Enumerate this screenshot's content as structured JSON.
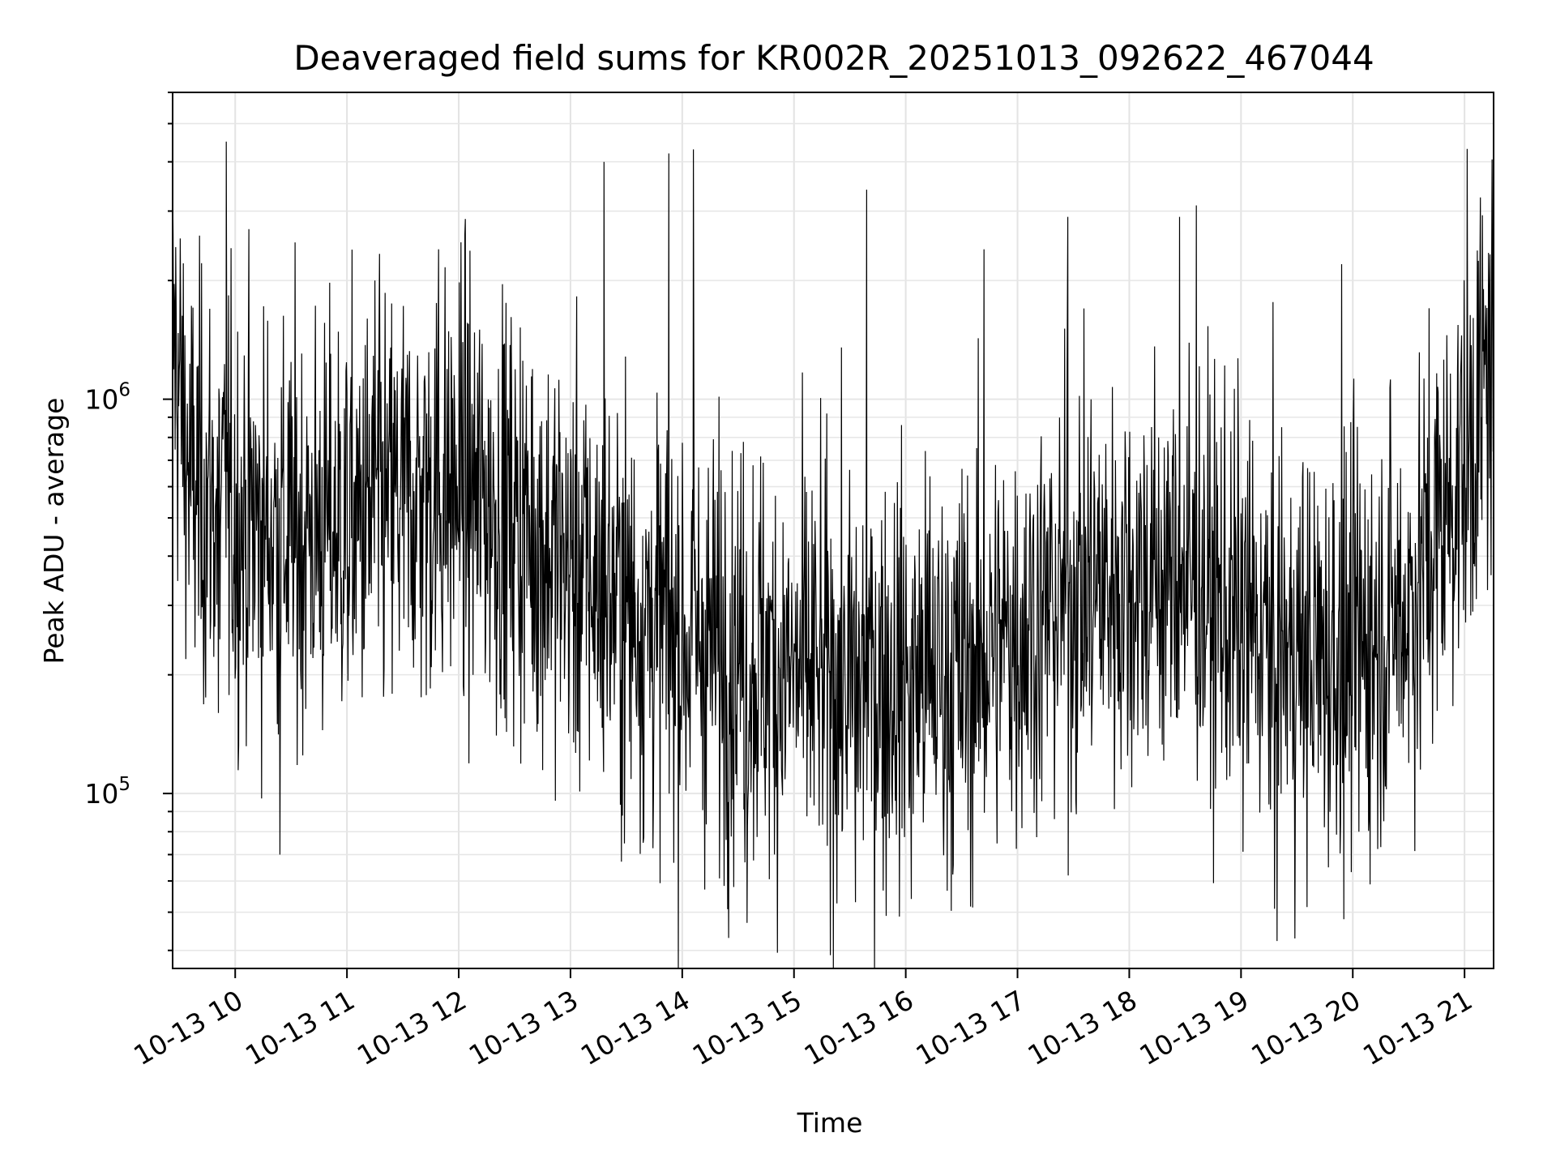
{
  "chart_data": {
    "type": "line",
    "title": "Deaveraged field sums for KR002R_20251013_092622_467044",
    "xlabel": "Time",
    "ylabel": "Peak ADU - average",
    "y_scale": "log",
    "ylim": [
      36000,
      6000000
    ],
    "xlim_hours": [
      9.44,
      21.26
    ],
    "grid": "major-and-minor",
    "line_color": "#000000",
    "x_ticks": [
      {
        "hour": 10,
        "label": "10-13 10"
      },
      {
        "hour": 11,
        "label": "10-13 11"
      },
      {
        "hour": 12,
        "label": "10-13 12"
      },
      {
        "hour": 13,
        "label": "10-13 13"
      },
      {
        "hour": 14,
        "label": "10-13 14"
      },
      {
        "hour": 15,
        "label": "10-13 15"
      },
      {
        "hour": 16,
        "label": "10-13 16"
      },
      {
        "hour": 17,
        "label": "10-13 17"
      },
      {
        "hour": 18,
        "label": "10-13 18"
      },
      {
        "hour": 19,
        "label": "10-13 19"
      },
      {
        "hour": 20,
        "label": "10-13 20"
      },
      {
        "hour": 21,
        "label": "10-13 21"
      }
    ],
    "y_ticks": [
      {
        "value": 100000,
        "base": "10",
        "exp": "5"
      },
      {
        "value": 1000000,
        "base": "10",
        "exp": "6"
      }
    ],
    "series": [
      {
        "name": "field sums",
        "baseline_hours": [
          9.44,
          9.6,
          10.0,
          10.5,
          11.0,
          11.5,
          12.0,
          12.5,
          13.0,
          13.5,
          14.0,
          14.5,
          15.0,
          15.5,
          16.0,
          16.5,
          17.0,
          17.5,
          18.0,
          18.5,
          19.0,
          19.5,
          20.0,
          20.5,
          21.0,
          21.26
        ],
        "baseline_values": [
          1500000,
          600000,
          500000,
          450000,
          480000,
          550000,
          600000,
          500000,
          380000,
          300000,
          250000,
          230000,
          200000,
          190000,
          200000,
          200000,
          260000,
          320000,
          350000,
          350000,
          270000,
          220000,
          230000,
          300000,
          700000,
          1300000
        ],
        "spike_hours": [
          9.92,
          11.25,
          11.82,
          12.02,
          13.3,
          13.88,
          14.1,
          15.65,
          16.7,
          17.45,
          18.45,
          18.6,
          19.9
        ],
        "spike_values": [
          4500000,
          2000000,
          2400000,
          2500000,
          4000000,
          4200000,
          4300000,
          3400000,
          2400000,
          2900000,
          2900000,
          3100000,
          2200000
        ],
        "dip_hours": [
          9.85,
          10.4,
          13.65,
          14.58,
          15.55,
          16.05,
          19.3,
          19.92
        ],
        "dip_values": [
          160000,
          70000,
          75000,
          47000,
          53000,
          54000,
          51000,
          48000
        ]
      }
    ]
  }
}
